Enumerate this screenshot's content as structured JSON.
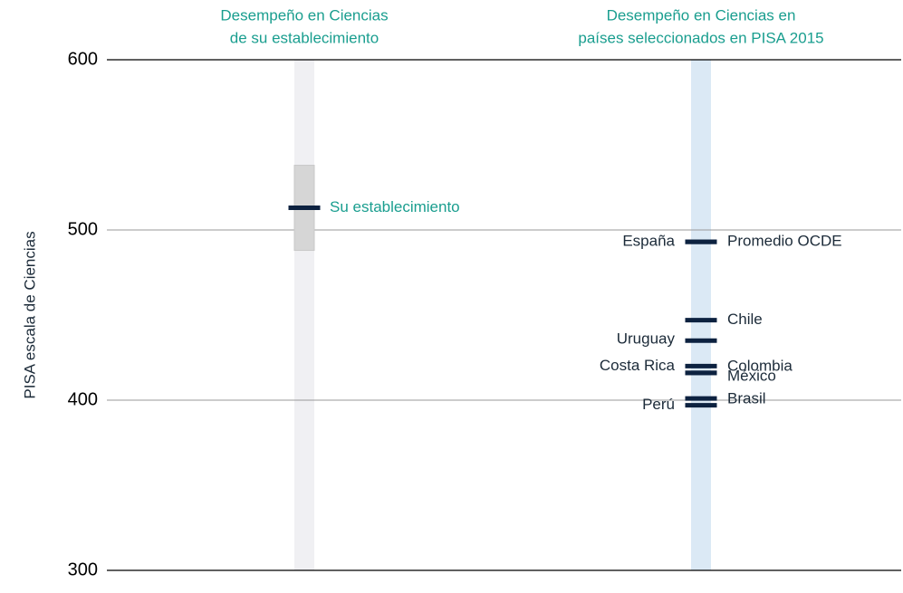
{
  "chart_data": {
    "type": "strip",
    "y_label": "PISA escala de Ciencias",
    "ylim": [
      300,
      600
    ],
    "yticks": [
      300,
      400,
      500,
      600
    ],
    "grid": true,
    "mark_color": "#0d2240",
    "school": {
      "title": [
        "Desempeño en Ciencias",
        "de su establecimiento"
      ],
      "name": "Su establecimiento",
      "value": 513,
      "range": [
        488,
        538
      ],
      "band_color": "#f0f0f3",
      "range_color": "#d6d6d6",
      "text_color": "#1a9e8f"
    },
    "countries": {
      "title": [
        "Desempeño en Ciencias en",
        "países seleccionados en PISA 2015"
      ],
      "band_color": "#dbe9f5",
      "names": [
        "España",
        "Promedio OCDE",
        "Chile",
        "Uruguay",
        "Costa Rica",
        "Colombia",
        "México",
        "Brasil",
        "Perú"
      ],
      "values": [
        493,
        493,
        447,
        435,
        420,
        416,
        416,
        401,
        397
      ]
    }
  }
}
